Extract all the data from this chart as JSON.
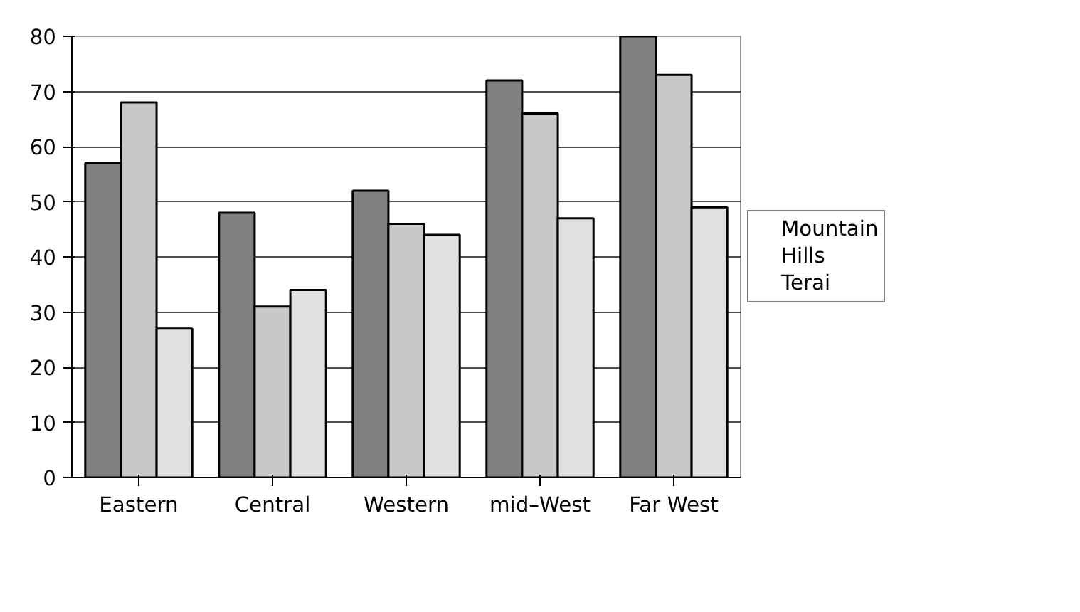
{
  "chart_data": {
    "type": "bar",
    "categories": [
      "Eastern",
      "Central",
      "Western",
      "mid–West",
      "Far West"
    ],
    "series": [
      {
        "name": "Mountain",
        "color": "#808080",
        "values": [
          57,
          48,
          52,
          72,
          80
        ]
      },
      {
        "name": "Hills",
        "color": "#c8c8c8",
        "values": [
          68,
          31,
          46,
          66,
          73
        ]
      },
      {
        "name": "Terai",
        "color": "#e0e0e0",
        "values": [
          27,
          34,
          44,
          47,
          49
        ]
      }
    ],
    "ylim": [
      0,
      80
    ],
    "yticks": [
      0,
      10,
      20,
      30,
      40,
      50,
      60,
      70,
      80
    ],
    "grid": "y",
    "legend": "right"
  }
}
